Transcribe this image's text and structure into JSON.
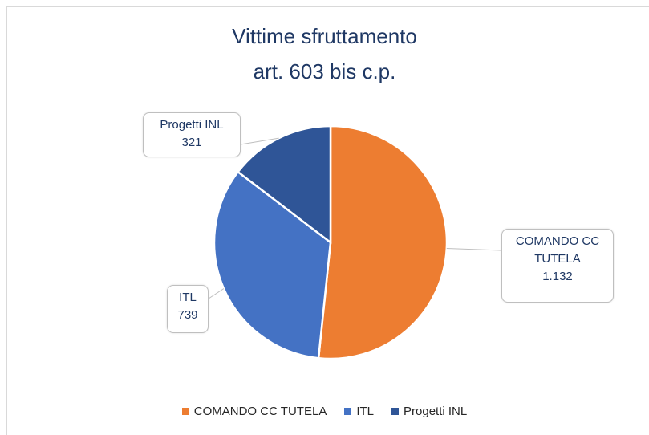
{
  "chart_data": {
    "type": "pie",
    "title": [
      "Vittime sfruttamento",
      "art. 603 bis c.p."
    ],
    "categories": [
      "COMANDO CC TUTELA",
      "ITL",
      "Progetti INL"
    ],
    "values": [
      1132,
      739,
      321
    ],
    "value_labels": [
      "1.132",
      "739",
      "321"
    ],
    "colors": [
      "#ed7d31",
      "#4472c4",
      "#2f5597"
    ],
    "legend": "bottom"
  }
}
